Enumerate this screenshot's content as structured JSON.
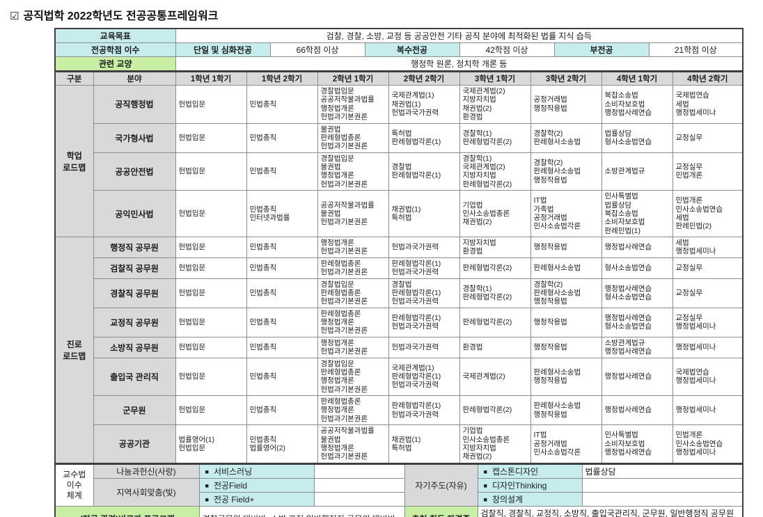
{
  "title": {
    "icon": "☑",
    "text": "공직법학 2022학년도 전공공통프레임워크"
  },
  "colors": {
    "accent_cyan": "#c6ecee",
    "accent_green": "#c9efa4",
    "header_gray": "#d9d9d9"
  },
  "top": {
    "edu_goal": {
      "label": "교육목표",
      "value": "검찰, 경찰, 소방, 교정 등 공공안전 기타 공직 분야에 최적화된 법률 지식 습득"
    },
    "credits": {
      "label": "전공학점 이수",
      "cells": [
        {
          "text": "단일 및 심화전공"
        },
        {
          "text": "66학점 이상"
        },
        {
          "text": "복수전공"
        },
        {
          "text": "42학점 이상"
        },
        {
          "text": "부전공"
        },
        {
          "text": "21학점 이상"
        }
      ]
    },
    "liberal": {
      "label": "관련 교양",
      "value": "행정학 원론, 정치학 개론 등"
    }
  },
  "grid": {
    "headers": [
      "구분",
      "분야",
      "1학년 1학기",
      "1학년 2학기",
      "2학년 1학기",
      "2학년 2학기",
      "3학년 1학기",
      "3학년 2학기",
      "4학년 1학기",
      "4학년 2학기"
    ],
    "groups": [
      {
        "label": "학업\n로드맵",
        "rows": [
          {
            "field": "공직행정법",
            "semesters": [
              [
                "헌법입문"
              ],
              [
                "민법총칙"
              ],
              [
                "경찰법입문",
                "공공저작물과법률",
                "행정법개론",
                "헌법과기본권론"
              ],
              [
                "국제관계법(1)",
                "채권법(1)",
                "헌법과국가권력"
              ],
              [
                "국제관계법(2)",
                "지방자치법",
                "채권법(2)",
                "환경법"
              ],
              [
                "공정거래법",
                "행정작용법"
              ],
              [
                "복잡소송법",
                "소비자보호법",
                "행정법사례연습"
              ],
              [
                "국제법연습",
                "세법",
                "행정법세미나"
              ]
            ]
          },
          {
            "field": "국가형사법",
            "semesters": [
              [
                "헌법입문"
              ],
              [
                "민법총칙"
              ],
              [
                "물권법",
                "판례형법총론",
                "헌법과기본권론"
              ],
              [
                "특허법",
                "판례형법각론(1)"
              ],
              [
                "경찰학(1)",
                "판례형법각론(2)"
              ],
              [
                "경찰학(2)",
                "판례형사소송법"
              ],
              [
                "법률상담",
                "형사소송법연습"
              ],
              [
                "교정실무"
              ]
            ]
          },
          {
            "field": "공공안전법",
            "semesters": [
              [
                "헌법입문"
              ],
              [
                "민법총칙"
              ],
              [
                "경찰법입문",
                "물권법",
                "행정법개론",
                "헌법과기본권론"
              ],
              [
                "경찰법",
                "판례형법각론(1)"
              ],
              [
                "경찰학(1)",
                "국제관계법(2)",
                "지방자치법",
                "판례형법각론(2)"
              ],
              [
                "경찰학(2)",
                "판례형사소송법",
                "행정작용법"
              ],
              [
                "소방관계법규"
              ],
              [
                "교정실무",
                "민법개론"
              ]
            ]
          },
          {
            "field": "공익민사법",
            "semesters": [
              [
                "헌법입문"
              ],
              [
                "민법총칙",
                "인터넷과법률"
              ],
              [
                "공공저작물과법률",
                "물권법",
                "헌법과기본권론"
              ],
              [
                "채권법(1)",
                "특허법"
              ],
              [
                "기업법",
                "민사소송법총론",
                "채권법(2)"
              ],
              [
                "IT법",
                "가족법",
                "공정거래법",
                "민사소송법각론"
              ],
              [
                "민사특별법",
                "법률상담",
                "복잡소송법",
                "소비자보호법",
                "판례민법(1)"
              ],
              [
                "민법개론",
                "민사소송법연습",
                "세법",
                "판례민법(2)"
              ]
            ]
          }
        ]
      },
      {
        "label": "진로\n로드맵",
        "rows": [
          {
            "field": "행정직 공무원",
            "semesters": [
              [
                "헌법입문"
              ],
              [
                "민법총칙"
              ],
              [
                "행정법개론",
                "헌법과기본권론"
              ],
              [
                "헌법과국가권력"
              ],
              [
                "지방자치법",
                "환경법"
              ],
              [
                "행정작용법"
              ],
              [
                "행정법사례연습"
              ],
              [
                "세법",
                "행정법세미나"
              ]
            ]
          },
          {
            "field": "검찰직 공무원",
            "semesters": [
              [
                "헌법입문"
              ],
              [
                "민법총칙"
              ],
              [
                "판례형법총론",
                "헌법과기본권론"
              ],
              [
                "판례형법각론(1)",
                "헌법과국가권력"
              ],
              [
                "판례형법각론(2)"
              ],
              [
                "판례형사소송법"
              ],
              [
                "형사소송법연습"
              ],
              [
                "교정실무"
              ]
            ]
          },
          {
            "field": "경찰직 공무원",
            "semesters": [
              [
                "헌법입문"
              ],
              [
                "민법총칙"
              ],
              [
                "경찰법입문",
                "판례형법총론",
                "헌법과기본권론"
              ],
              [
                "경찰법",
                "판례형법각론(1)",
                "헌법과국가권력"
              ],
              [
                "경찰학(1)",
                "판례형법각론(2)"
              ],
              [
                "경찰학(2)",
                "판례형사소송법",
                "행정작용법"
              ],
              [
                "행정법사례연습",
                "형사소송법연습"
              ],
              [
                "교정실무"
              ]
            ]
          },
          {
            "field": "교정직 공무원",
            "semesters": [
              [
                "헌법입문"
              ],
              [
                "민법총칙"
              ],
              [
                "판례형법총론",
                "행정법개론",
                "헌법과기본권론"
              ],
              [
                "판례형법각론(1)",
                "헌법과국가권력"
              ],
              [
                "판례형법각론(2)"
              ],
              [
                "행정작용법"
              ],
              [
                "행정법사례연습",
                "형사소송법연습"
              ],
              [
                "교정실무",
                "행정법세미나"
              ]
            ]
          },
          {
            "field": "소방직 공무원",
            "semesters": [
              [
                "헌법입문"
              ],
              [
                "민법총칙"
              ],
              [
                "행정법개론",
                "헌법과기본권론"
              ],
              [
                "헌법과국가권력"
              ],
              [
                "환경법"
              ],
              [
                "행정작용법"
              ],
              [
                "소방관계법규",
                "행정법사례연습"
              ],
              [
                "행정법세미나"
              ]
            ]
          },
          {
            "field": "출입국 관리직",
            "semesters": [
              [
                "헌법입문"
              ],
              [
                "민법총칙"
              ],
              [
                "경찰법입문",
                "판례형법총론",
                "행정법개론",
                "헌법과기본권론"
              ],
              [
                "국제관계법(1)",
                "판례형법각론(1)",
                "헌법과국가권력"
              ],
              [
                "국제관계법(2)"
              ],
              [
                "판례형사소송법",
                "행정작용법"
              ],
              [
                "행정법사례연습"
              ],
              [
                "국제법연습",
                "행정법세미나"
              ]
            ]
          },
          {
            "field": "군무원",
            "semesters": [
              [
                "헌법입문"
              ],
              [
                "민법총칙"
              ],
              [
                "판례형법총론",
                "행정법개론",
                "헌법과기본권론"
              ],
              [
                "판례형법각론(1)",
                "헌법과국가권력"
              ],
              [
                "판례형법각론(2)"
              ],
              [
                "판례형사소송법",
                "행정작용법"
              ],
              [
                "행정법사례연습"
              ],
              [
                "행정법세미나"
              ]
            ]
          },
          {
            "field": "공공기관",
            "semesters": [
              [
                "법률영어(1)",
                "헌법입문"
              ],
              [
                "민법총칙",
                "법률영어(2)"
              ],
              [
                "공공저작물과법률",
                "물권법",
                "행정법개론",
                "헌법과기본권론"
              ],
              [
                "채권법(1)",
                "특허법"
              ],
              [
                "기업법",
                "민사소송법총론",
                "지방자치법",
                "채권법(2)"
              ],
              [
                "IT법",
                "공정거래법",
                "민사소송법각론"
              ],
              [
                "민사특별법",
                "소비자보호법",
                "행정법사례연습"
              ],
              [
                "민법개론",
                "민사소송법연습",
                "행정법세미나"
              ]
            ]
          }
        ]
      }
    ]
  },
  "bottom": {
    "bullet": "■",
    "left_header": "교수법\n이수\n체계",
    "rows": [
      {
        "label": "나눔과헌신(사랑)",
        "item": "서비스러닝"
      },
      {
        "label": "지역사회맞춤(빛)",
        "item": "전공Field"
      },
      {
        "item": "전공 Field+"
      }
    ],
    "right": {
      "label": "자기주도(자유)",
      "items": [
        {
          "item": "캡스톤디자인",
          "value": "법률상담"
        },
        {
          "item": "디자인Thinking",
          "value": ""
        },
        {
          "item": "창의설계",
          "value": ""
        }
      ]
    },
    "programs": {
      "label": "(전공 관련)비교과 프로그램",
      "value": "경찰공무원 대비반, 소방 교정 일반행정직 공무원 대비반"
    },
    "certs": {
      "label": "추천 취득 자격증",
      "value": "검찰직, 경찰직, 교정직, 소방직, 출입국관리직, 군무원, 일반행정직 공무원 진출"
    }
  }
}
